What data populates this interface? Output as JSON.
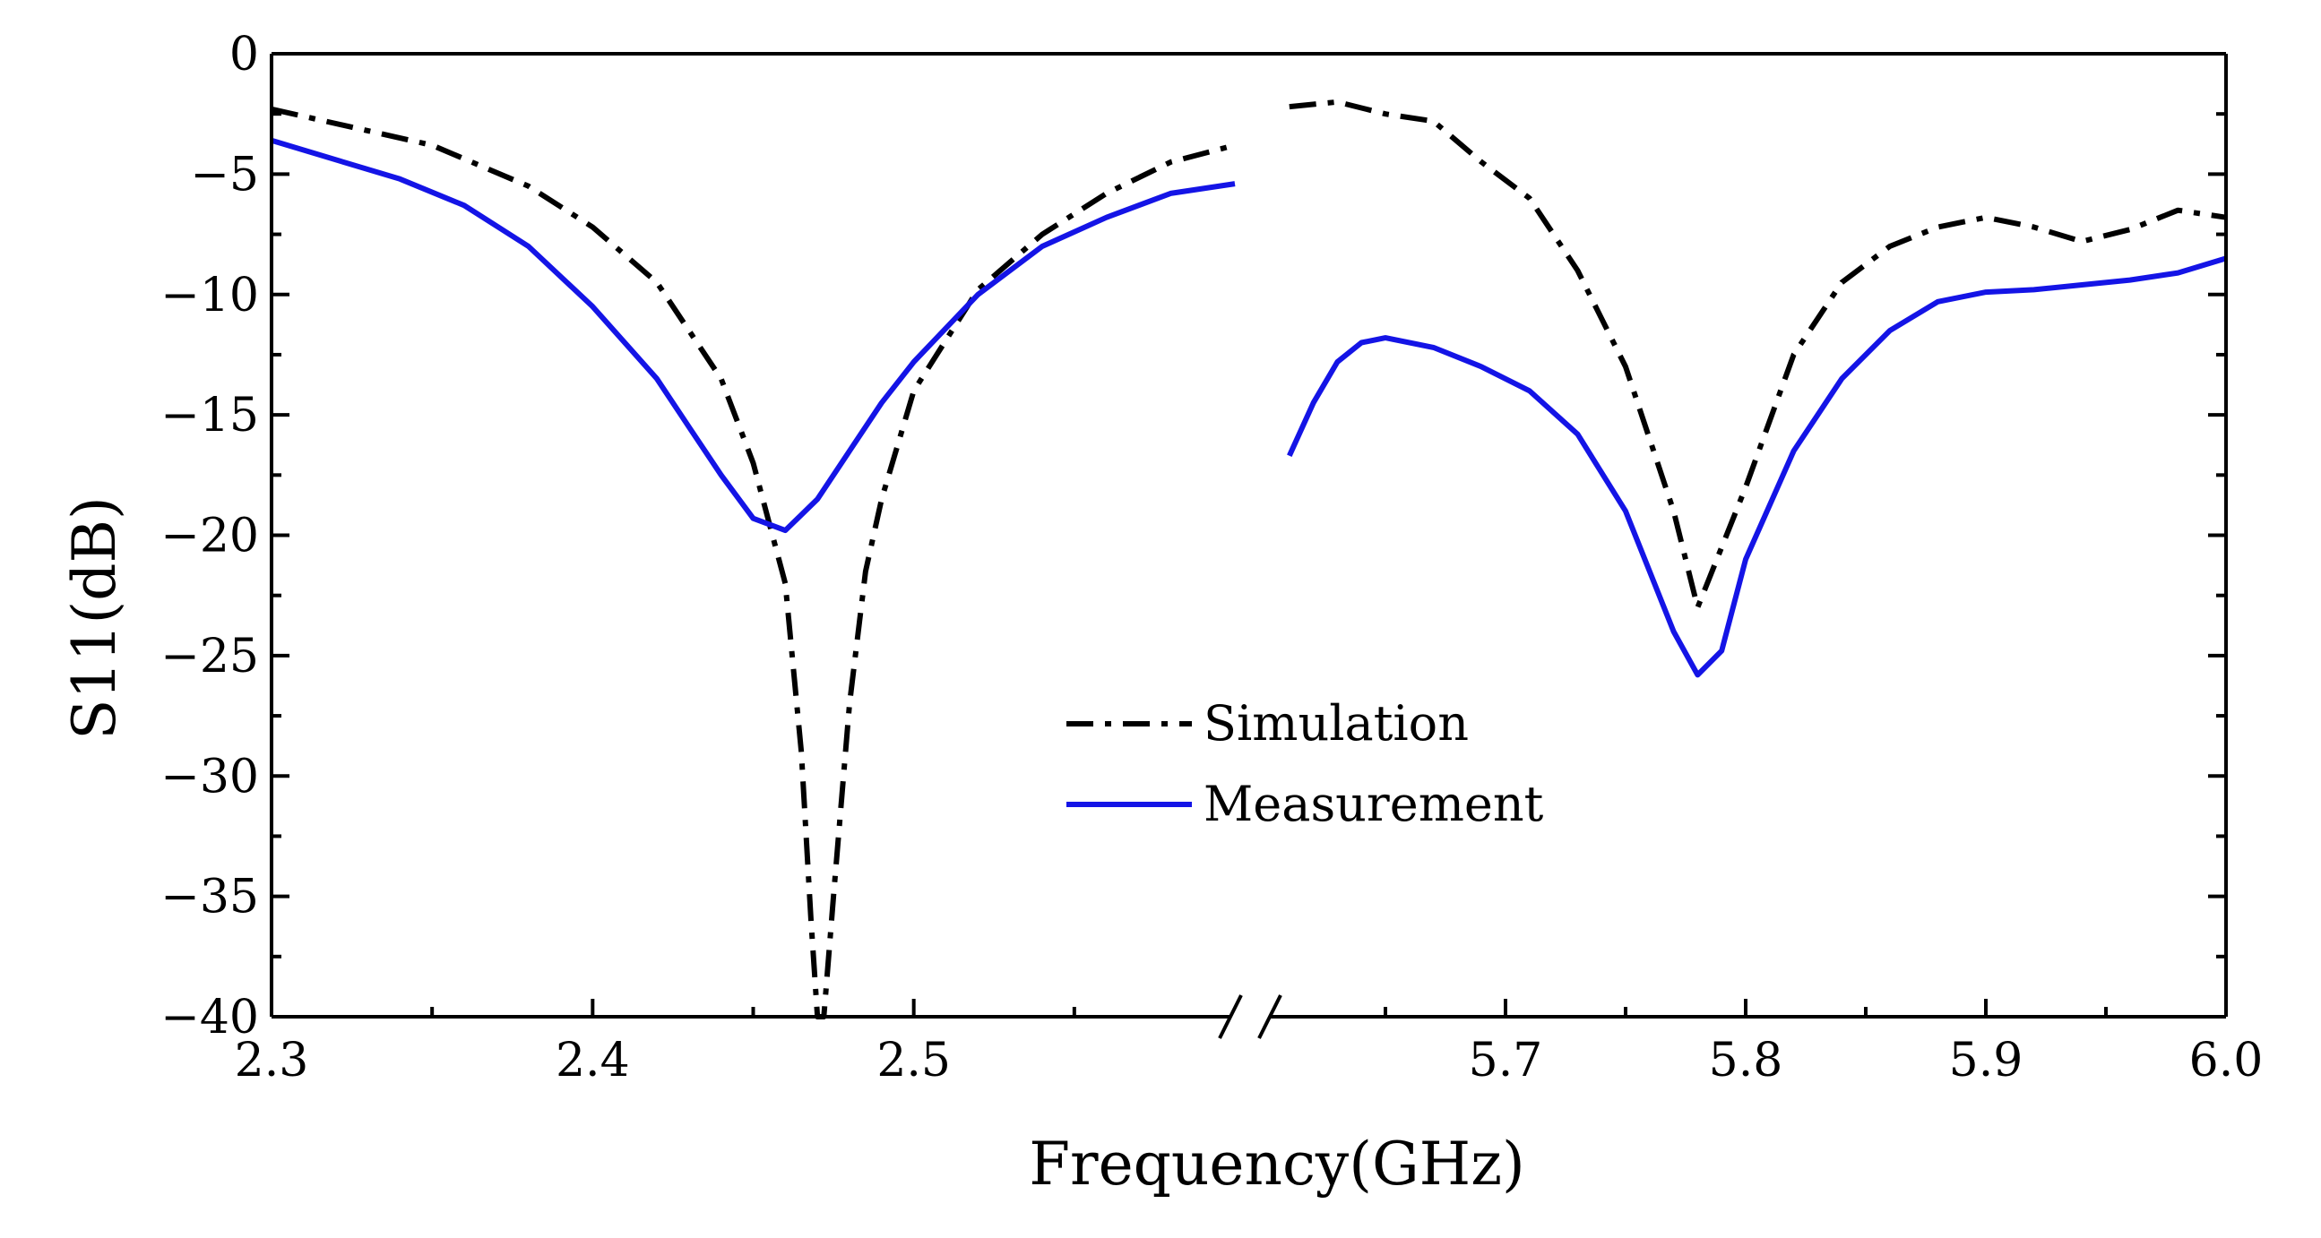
{
  "chart_data": {
    "type": "line",
    "title": "",
    "xlabel": "Frequency(GHz)",
    "ylabel": "S11(dB)",
    "ylim": [
      -40,
      0
    ],
    "yticks": [
      "0",
      "−5",
      "−10",
      "−15",
      "−20",
      "−25",
      "−30",
      "−35",
      "−40"
    ],
    "ytick_values": [
      0,
      -5,
      -10,
      -15,
      -20,
      -25,
      -30,
      -35,
      -40
    ],
    "x_broken_axis": true,
    "x_segments": [
      {
        "xlim": [
          2.3,
          2.6
        ],
        "ticks": [
          {
            "value": 2.3,
            "label": "2.3"
          },
          {
            "value": 2.4,
            "label": "2.4"
          },
          {
            "value": 2.5,
            "label": "2.5"
          }
        ],
        "minor_ticks": [
          2.35,
          2.45,
          2.55
        ]
      },
      {
        "xlim": [
          5.6,
          6.0
        ],
        "ticks": [
          {
            "value": 5.7,
            "label": "5.7"
          },
          {
            "value": 5.8,
            "label": "5.8"
          },
          {
            "value": 5.9,
            "label": "5.9"
          },
          {
            "value": 6.0,
            "label": "6.0"
          }
        ],
        "minor_ticks": [
          5.65,
          5.75,
          5.85,
          5.95
        ]
      }
    ],
    "series": [
      {
        "name": "Simulation",
        "style": "dash-dot",
        "color": "#000000",
        "segments": [
          [
            [
              2.3,
              -2.3
            ],
            [
              2.35,
              -3.8
            ],
            [
              2.38,
              -5.5
            ],
            [
              2.4,
              -7.2
            ],
            [
              2.42,
              -9.5
            ],
            [
              2.44,
              -13.5
            ],
            [
              2.45,
              -17.0
            ],
            [
              2.46,
              -22.0
            ],
            [
              2.465,
              -29.0
            ],
            [
              2.468,
              -36.0
            ],
            [
              2.47,
              -40.0
            ],
            [
              2.472,
              -40.0
            ],
            [
              2.475,
              -35.0
            ],
            [
              2.48,
              -27.0
            ],
            [
              2.485,
              -21.5
            ],
            [
              2.49,
              -18.5
            ],
            [
              2.5,
              -14.0
            ],
            [
              2.52,
              -9.8
            ],
            [
              2.54,
              -7.5
            ],
            [
              2.56,
              -5.8
            ],
            [
              2.58,
              -4.5
            ],
            [
              2.6,
              -3.8
            ]
          ],
          [
            [
              5.61,
              -2.2
            ],
            [
              5.63,
              -2.0
            ],
            [
              5.65,
              -2.5
            ],
            [
              5.67,
              -2.8
            ],
            [
              5.69,
              -4.5
            ],
            [
              5.71,
              -6.0
            ],
            [
              5.73,
              -9.0
            ],
            [
              5.75,
              -13.0
            ],
            [
              5.77,
              -19.0
            ],
            [
              5.78,
              -23.0
            ],
            [
              5.8,
              -18.0
            ],
            [
              5.82,
              -12.5
            ],
            [
              5.84,
              -9.5
            ],
            [
              5.86,
              -8.0
            ],
            [
              5.88,
              -7.2
            ],
            [
              5.9,
              -6.8
            ],
            [
              5.92,
              -7.2
            ],
            [
              5.94,
              -7.8
            ],
            [
              5.96,
              -7.3
            ],
            [
              5.98,
              -6.5
            ],
            [
              6.0,
              -6.8
            ]
          ]
        ]
      },
      {
        "name": "Measurement",
        "style": "solid",
        "color": "#1414e6",
        "segments": [
          [
            [
              2.3,
              -3.6
            ],
            [
              2.34,
              -5.2
            ],
            [
              2.36,
              -6.3
            ],
            [
              2.38,
              -8.0
            ],
            [
              2.4,
              -10.5
            ],
            [
              2.42,
              -13.5
            ],
            [
              2.43,
              -15.5
            ],
            [
              2.44,
              -17.5
            ],
            [
              2.45,
              -19.3
            ],
            [
              2.46,
              -19.8
            ],
            [
              2.47,
              -18.5
            ],
            [
              2.48,
              -16.5
            ],
            [
              2.49,
              -14.5
            ],
            [
              2.5,
              -12.8
            ],
            [
              2.52,
              -10.0
            ],
            [
              2.54,
              -8.0
            ],
            [
              2.56,
              -6.8
            ],
            [
              2.58,
              -5.8
            ],
            [
              2.6,
              -5.4
            ]
          ],
          [
            [
              5.61,
              -16.7
            ],
            [
              5.62,
              -14.5
            ],
            [
              5.63,
              -12.8
            ],
            [
              5.64,
              -12.0
            ],
            [
              5.65,
              -11.8
            ],
            [
              5.67,
              -12.2
            ],
            [
              5.69,
              -13.0
            ],
            [
              5.71,
              -14.0
            ],
            [
              5.73,
              -15.8
            ],
            [
              5.75,
              -19.0
            ],
            [
              5.77,
              -24.0
            ],
            [
              5.78,
              -25.8
            ],
            [
              5.79,
              -24.8
            ],
            [
              5.8,
              -21.0
            ],
            [
              5.82,
              -16.5
            ],
            [
              5.84,
              -13.5
            ],
            [
              5.86,
              -11.5
            ],
            [
              5.88,
              -10.3
            ],
            [
              5.9,
              -9.9
            ],
            [
              5.92,
              -9.8
            ],
            [
              5.94,
              -9.6
            ],
            [
              5.96,
              -9.4
            ],
            [
              5.98,
              -9.1
            ],
            [
              6.0,
              -8.5
            ]
          ]
        ]
      }
    ],
    "legend": {
      "position": "center",
      "entries": [
        "Simulation",
        "Measurement"
      ]
    }
  }
}
